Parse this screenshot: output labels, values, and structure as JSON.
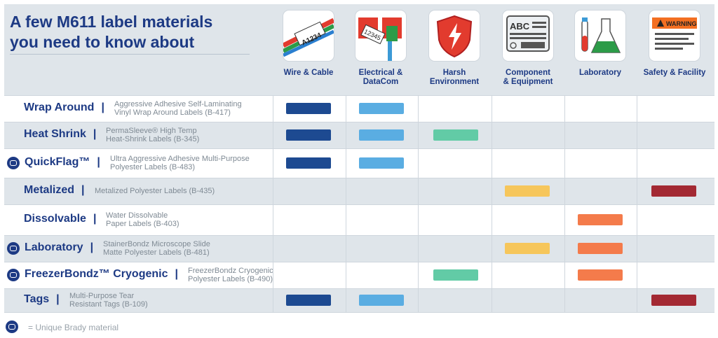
{
  "title_lines": [
    "A few M611 label materials",
    "you need to know about"
  ],
  "columns": [
    {
      "label_lines": [
        "Wire & Cable"
      ],
      "icon": "wire-cable-icon"
    },
    {
      "label_lines": [
        "Electrical &",
        "DataCom"
      ],
      "icon": "electrical-datacom-icon"
    },
    {
      "label_lines": [
        "Harsh",
        "Environment"
      ],
      "icon": "harsh-environment-icon"
    },
    {
      "label_lines": [
        "Component",
        "& Equipment"
      ],
      "icon": "component-equipment-icon"
    },
    {
      "label_lines": [
        "Laboratory"
      ],
      "icon": "laboratory-icon"
    },
    {
      "label_lines": [
        "Safety & Facility"
      ],
      "icon": "safety-facility-icon"
    }
  ],
  "icon_text": {
    "wire": "A1234",
    "datacom": "12345",
    "component": "ABC",
    "warning": "WARNING"
  },
  "colors": {
    "navy": "#1d3a84",
    "Wire & Cable": "#1d4a91",
    "Electrical & DataCom": "#5aade2",
    "Harsh Environment": "#62cba6",
    "Component & Equipment": "#f6c65b",
    "Laboratory": "#f47b4b",
    "Safety & Facility": "#a32933"
  },
  "chart_data": {
    "type": "table",
    "title": "A few M611 label materials you need to know about",
    "columns": [
      "Wire & Cable",
      "Electrical & DataCom",
      "Harsh Environment",
      "Component & Equipment",
      "Laboratory",
      "Safety & Facility"
    ],
    "rows": [
      {
        "name": "Wrap Around",
        "unique": false,
        "desc_lines": [
          "Aggressive Adhesive Self-Laminating",
          "Vinyl Wrap Around Labels (B-417)"
        ],
        "applies": [
          1,
          1,
          0,
          0,
          0,
          0
        ]
      },
      {
        "name": "Heat Shrink",
        "unique": false,
        "desc_lines": [
          "PermaSleeve® High Temp",
          "Heat-Shrink Labels (B-345)"
        ],
        "applies": [
          1,
          1,
          1,
          0,
          0,
          0
        ]
      },
      {
        "name": "QuickFlag™",
        "unique": true,
        "desc_lines": [
          "Ultra Aggressive Adhesive Multi-Purpose",
          "Polyester Labels (B-483)"
        ],
        "applies": [
          1,
          1,
          0,
          0,
          0,
          0
        ]
      },
      {
        "name": "Metalized",
        "unique": false,
        "desc_lines": [
          "Metalized Polyester Labels (B-435)"
        ],
        "applies": [
          0,
          0,
          0,
          1,
          0,
          1
        ]
      },
      {
        "name": "Dissolvable",
        "unique": false,
        "desc_lines": [
          "Water Dissolvable",
          "Paper Labels (B-403)"
        ],
        "applies": [
          0,
          0,
          0,
          0,
          1,
          0
        ]
      },
      {
        "name": "Laboratory",
        "unique": true,
        "desc_lines": [
          "StainerBondz Microscope Slide",
          "Matte Polyester Labels (B-481)"
        ],
        "applies": [
          0,
          0,
          0,
          1,
          1,
          0
        ]
      },
      {
        "name": "FreezerBondz™ Cryogenic",
        "unique": true,
        "desc_lines": [
          "FreezerBondz Cryogenic",
          "Polyester Labels (B-490)"
        ],
        "applies": [
          0,
          0,
          1,
          0,
          1,
          0
        ]
      },
      {
        "name": "Tags",
        "unique": false,
        "desc_lines": [
          "Multi-Purpose Tear",
          "Resistant Tags (B-109)"
        ],
        "applies": [
          1,
          1,
          0,
          0,
          0,
          1
        ]
      }
    ],
    "legend": "= Unique Brady material"
  }
}
